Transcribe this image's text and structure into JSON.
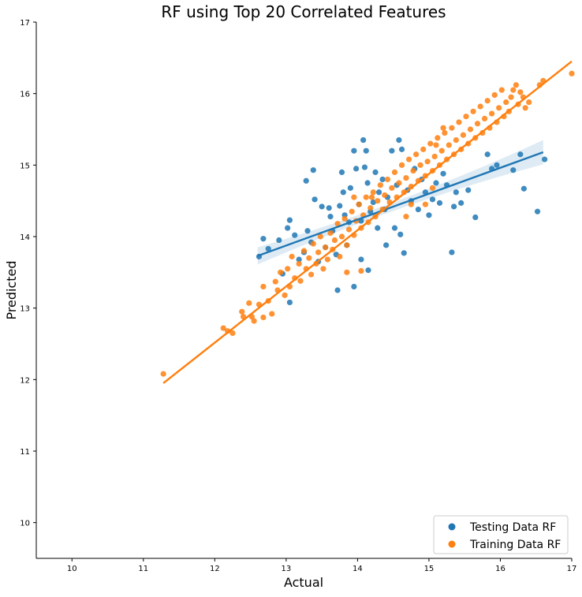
{
  "chart_data": {
    "type": "scatter",
    "title": "RF using Top 20 Correlated Features",
    "xlabel": "Actual",
    "ylabel": "Predicted",
    "xlim": [
      9.5,
      17
    ],
    "ylim": [
      9.5,
      17
    ],
    "xticks": [
      "10",
      "11",
      "12",
      "13",
      "14",
      "15",
      "16",
      "17"
    ],
    "yticks": [
      "10",
      "11",
      "12",
      "13",
      "14",
      "15",
      "16",
      "17"
    ],
    "grid": false,
    "legend_position": "lower right",
    "series": [
      {
        "name": "Testing Data RF",
        "color": "#1f77b4",
        "fit_line": {
          "x": [
            12.6,
            16.6
          ],
          "y": [
            13.73,
            15.18
          ]
        },
        "points": [
          [
            12.62,
            13.72
          ],
          [
            12.68,
            13.97
          ],
          [
            12.75,
            13.83
          ],
          [
            12.9,
            13.95
          ],
          [
            12.95,
            13.48
          ],
          [
            13.02,
            14.12
          ],
          [
            13.05,
            14.23
          ],
          [
            13.05,
            13.08
          ],
          [
            13.12,
            14.02
          ],
          [
            13.18,
            13.68
          ],
          [
            13.25,
            13.78
          ],
          [
            13.28,
            14.78
          ],
          [
            13.3,
            14.08
          ],
          [
            13.35,
            13.92
          ],
          [
            13.38,
            14.93
          ],
          [
            13.4,
            14.52
          ],
          [
            13.45,
            13.65
          ],
          [
            13.5,
            14.42
          ],
          [
            13.55,
            13.85
          ],
          [
            13.6,
            14.4
          ],
          [
            13.62,
            14.28
          ],
          [
            13.65,
            14.08
          ],
          [
            13.7,
            13.75
          ],
          [
            13.72,
            13.25
          ],
          [
            13.75,
            14.43
          ],
          [
            13.78,
            14.9
          ],
          [
            13.8,
            14.62
          ],
          [
            13.82,
            14.3
          ],
          [
            13.85,
            13.88
          ],
          [
            13.88,
            14.2
          ],
          [
            13.9,
            14.68
          ],
          [
            13.95,
            15.2
          ],
          [
            13.95,
            13.3
          ],
          [
            13.98,
            14.95
          ],
          [
            14.02,
            14.45
          ],
          [
            14.05,
            14.22
          ],
          [
            14.05,
            13.68
          ],
          [
            14.08,
            15.35
          ],
          [
            14.1,
            14.97
          ],
          [
            14.12,
            15.2
          ],
          [
            14.14,
            14.75
          ],
          [
            14.15,
            13.53
          ],
          [
            14.18,
            14.35
          ],
          [
            14.22,
            14.48
          ],
          [
            14.25,
            14.9
          ],
          [
            14.28,
            14.12
          ],
          [
            14.3,
            14.62
          ],
          [
            14.35,
            14.8
          ],
          [
            14.38,
            14.38
          ],
          [
            14.4,
            13.88
          ],
          [
            14.42,
            14.55
          ],
          [
            14.48,
            15.2
          ],
          [
            14.52,
            14.12
          ],
          [
            14.55,
            14.72
          ],
          [
            14.58,
            15.35
          ],
          [
            14.6,
            14.03
          ],
          [
            14.62,
            15.22
          ],
          [
            14.65,
            13.77
          ],
          [
            14.7,
            14.65
          ],
          [
            14.75,
            14.5
          ],
          [
            14.8,
            14.95
          ],
          [
            14.85,
            14.38
          ],
          [
            14.9,
            14.8
          ],
          [
            14.95,
            14.62
          ],
          [
            15.0,
            14.3
          ],
          [
            15.05,
            14.52
          ],
          [
            15.1,
            14.75
          ],
          [
            15.15,
            14.47
          ],
          [
            15.2,
            14.88
          ],
          [
            15.25,
            14.72
          ],
          [
            15.32,
            13.78
          ],
          [
            15.35,
            14.42
          ],
          [
            15.38,
            14.62
          ],
          [
            15.45,
            14.47
          ],
          [
            15.55,
            14.65
          ],
          [
            15.65,
            14.27
          ],
          [
            15.82,
            15.15
          ],
          [
            15.88,
            14.95
          ],
          [
            15.95,
            15.0
          ],
          [
            16.18,
            14.93
          ],
          [
            16.28,
            15.15
          ],
          [
            16.33,
            14.67
          ],
          [
            16.52,
            14.35
          ],
          [
            16.62,
            15.08
          ]
        ]
      },
      {
        "name": "Training Data RF",
        "color": "#ff7f0e",
        "fit_line": {
          "x": [
            11.28,
            17.0
          ],
          "y": [
            11.95,
            16.45
          ]
        },
        "points": [
          [
            11.28,
            12.08
          ],
          [
            12.12,
            12.72
          ],
          [
            12.18,
            12.68
          ],
          [
            12.25,
            12.65
          ],
          [
            12.38,
            12.95
          ],
          [
            12.4,
            12.88
          ],
          [
            12.48,
            13.07
          ],
          [
            12.52,
            12.88
          ],
          [
            12.55,
            12.82
          ],
          [
            12.62,
            13.05
          ],
          [
            12.68,
            13.3
          ],
          [
            12.68,
            12.87
          ],
          [
            12.75,
            13.1
          ],
          [
            12.8,
            12.92
          ],
          [
            12.85,
            13.37
          ],
          [
            12.88,
            13.25
          ],
          [
            12.92,
            13.5
          ],
          [
            12.98,
            13.18
          ],
          [
            13.02,
            13.55
          ],
          [
            13.05,
            13.3
          ],
          [
            13.08,
            13.72
          ],
          [
            13.12,
            13.42
          ],
          [
            13.18,
            13.62
          ],
          [
            13.2,
            13.38
          ],
          [
            13.25,
            13.8
          ],
          [
            13.28,
            13.55
          ],
          [
            13.32,
            13.7
          ],
          [
            13.35,
            13.47
          ],
          [
            13.38,
            13.9
          ],
          [
            13.42,
            13.62
          ],
          [
            13.45,
            13.78
          ],
          [
            13.48,
            14.0
          ],
          [
            13.52,
            13.55
          ],
          [
            13.55,
            13.85
          ],
          [
            13.58,
            13.68
          ],
          [
            13.62,
            14.05
          ],
          [
            13.65,
            13.82
          ],
          [
            13.68,
            13.95
          ],
          [
            13.72,
            14.18
          ],
          [
            13.75,
            13.72
          ],
          [
            13.78,
            14.0
          ],
          [
            13.82,
            14.25
          ],
          [
            13.85,
            13.88
          ],
          [
            13.88,
            14.1
          ],
          [
            13.92,
            14.35
          ],
          [
            13.95,
            14.02
          ],
          [
            13.98,
            14.22
          ],
          [
            14.02,
            14.45
          ],
          [
            14.05,
            14.12
          ],
          [
            14.08,
            14.3
          ],
          [
            14.12,
            14.55
          ],
          [
            14.15,
            14.2
          ],
          [
            14.18,
            14.4
          ],
          [
            14.22,
            14.62
          ],
          [
            14.25,
            14.28
          ],
          [
            14.28,
            14.5
          ],
          [
            14.32,
            14.72
          ],
          [
            14.35,
            14.38
          ],
          [
            14.38,
            14.58
          ],
          [
            14.42,
            14.8
          ],
          [
            14.45,
            14.48
          ],
          [
            14.48,
            14.68
          ],
          [
            14.52,
            14.9
          ],
          [
            14.55,
            14.55
          ],
          [
            14.58,
            14.75
          ],
          [
            14.62,
            15.0
          ],
          [
            14.65,
            14.62
          ],
          [
            14.68,
            14.82
          ],
          [
            14.72,
            15.08
          ],
          [
            14.75,
            14.7
          ],
          [
            14.78,
            14.92
          ],
          [
            14.82,
            15.15
          ],
          [
            14.85,
            14.78
          ],
          [
            14.88,
            15.0
          ],
          [
            14.92,
            15.22
          ],
          [
            14.95,
            14.85
          ],
          [
            14.98,
            15.05
          ],
          [
            15.02,
            15.3
          ],
          [
            15.05,
            14.92
          ],
          [
            15.08,
            15.12
          ],
          [
            15.12,
            15.38
          ],
          [
            15.15,
            15.0
          ],
          [
            15.18,
            15.2
          ],
          [
            15.22,
            15.45
          ],
          [
            15.25,
            15.08
          ],
          [
            15.28,
            15.28
          ],
          [
            15.32,
            15.52
          ],
          [
            15.35,
            15.15
          ],
          [
            15.38,
            15.35
          ],
          [
            15.42,
            15.6
          ],
          [
            15.45,
            15.22
          ],
          [
            15.48,
            15.42
          ],
          [
            15.52,
            15.68
          ],
          [
            15.55,
            15.3
          ],
          [
            15.58,
            15.5
          ],
          [
            15.62,
            15.75
          ],
          [
            15.65,
            15.38
          ],
          [
            15.68,
            15.58
          ],
          [
            15.72,
            15.82
          ],
          [
            15.75,
            15.45
          ],
          [
            15.78,
            15.65
          ],
          [
            15.82,
            15.9
          ],
          [
            15.85,
            15.52
          ],
          [
            15.88,
            15.72
          ],
          [
            15.92,
            15.98
          ],
          [
            15.95,
            15.6
          ],
          [
            15.98,
            15.8
          ],
          [
            16.02,
            16.05
          ],
          [
            16.05,
            15.68
          ],
          [
            16.08,
            15.88
          ],
          [
            16.12,
            15.75
          ],
          [
            16.15,
            15.95
          ],
          [
            16.18,
            16.05
          ],
          [
            16.22,
            16.12
          ],
          [
            16.25,
            15.85
          ],
          [
            16.28,
            16.02
          ],
          [
            16.32,
            15.95
          ],
          [
            16.35,
            15.8
          ],
          [
            16.4,
            15.88
          ],
          [
            16.55,
            16.12
          ],
          [
            16.6,
            16.18
          ],
          [
            17.0,
            16.28
          ],
          [
            13.85,
            13.5
          ],
          [
            14.05,
            13.52
          ],
          [
            14.2,
            14.55
          ],
          [
            13.95,
            14.55
          ],
          [
            14.68,
            14.28
          ],
          [
            14.75,
            14.45
          ],
          [
            14.95,
            14.45
          ],
          [
            15.05,
            14.68
          ],
          [
            15.1,
            15.28
          ],
          [
            15.2,
            15.52
          ]
        ]
      }
    ]
  }
}
